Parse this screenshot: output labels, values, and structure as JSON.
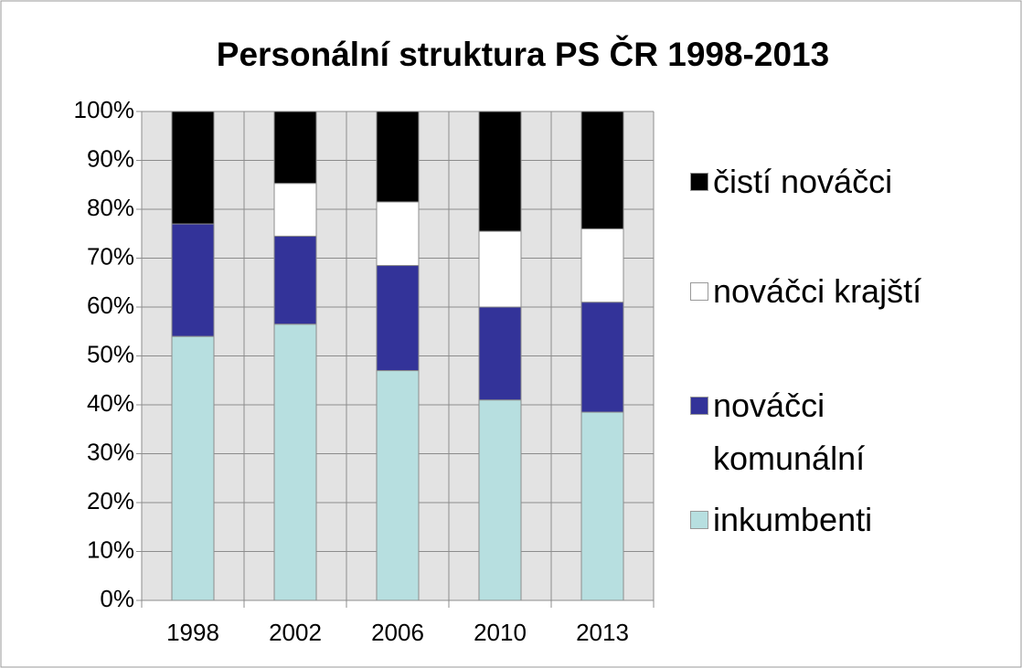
{
  "chart_data": {
    "type": "bar",
    "stacked": true,
    "title": "Personální struktura PS ČR 1998-2013",
    "categories": [
      "1998",
      "2002",
      "2006",
      "2010",
      "2013"
    ],
    "series": [
      {
        "name": "inkumbenti",
        "color": "#b7dfe0",
        "values": [
          54,
          56.5,
          47,
          41,
          38.5
        ]
      },
      {
        "name": "nováčci komunální",
        "color": "#333399",
        "values": [
          23,
          18,
          21.5,
          19,
          22.5
        ]
      },
      {
        "name": "nováčci krajští",
        "color": "#ffffff",
        "values": [
          0,
          10.8,
          13,
          15.5,
          15
        ]
      },
      {
        "name": "čistí nováčci",
        "color": "#000000",
        "values": [
          23,
          14.7,
          18.5,
          24.5,
          24
        ]
      }
    ],
    "ylim": [
      0,
      100
    ],
    "yticks": [
      {
        "value": 0,
        "label": "0%"
      },
      {
        "value": 10,
        "label": "10%"
      },
      {
        "value": 20,
        "label": "20%"
      },
      {
        "value": 30,
        "label": "30%"
      },
      {
        "value": 40,
        "label": "40%"
      },
      {
        "value": 50,
        "label": "50%"
      },
      {
        "value": 60,
        "label": "60%"
      },
      {
        "value": 70,
        "label": "70%"
      },
      {
        "value": 80,
        "label": "80%"
      },
      {
        "value": 90,
        "label": "90%"
      },
      {
        "value": 100,
        "label": "100%"
      }
    ],
    "grid": true,
    "legend": "right"
  }
}
